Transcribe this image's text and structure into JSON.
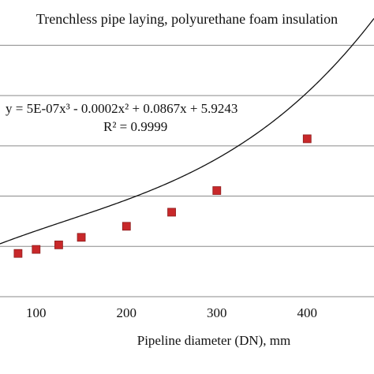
{
  "chart_data": {
    "type": "scatter",
    "title": "Trenchless pipe laying,  polyurethane foam insulation",
    "xlabel": "Pipeline diameter (DN), mm",
    "ylabel": "",
    "xlim": [
      60,
      474
    ],
    "ylim": [
      0,
      59
    ],
    "xticks": [
      100,
      200,
      300,
      400
    ],
    "yticks": [
      0,
      10,
      20,
      30,
      40,
      50
    ],
    "grid": true,
    "series": [
      {
        "values": [
          {
            "x": 80,
            "y": 8.6
          },
          {
            "x": 100,
            "y": 9.4
          },
          {
            "x": 125,
            "y": 10.3
          },
          {
            "x": 150,
            "y": 11.8
          },
          {
            "x": 200,
            "y": 14.0
          },
          {
            "x": 250,
            "y": 16.8
          },
          {
            "x": 300,
            "y": 21.1
          },
          {
            "x": 400,
            "y": 31.4
          }
        ],
        "color": "#c8282a"
      }
    ],
    "trendline": {
      "type": "polynomial",
      "order": 3,
      "coefficients": [
        5e-07,
        -0.0002,
        0.0867,
        5.9243
      ],
      "equation": "y = 5E-07x³ - 0.0002x² + 0.0867x + 5.9243",
      "r_squared": "R² = 0.9999",
      "color": "#111111"
    }
  }
}
